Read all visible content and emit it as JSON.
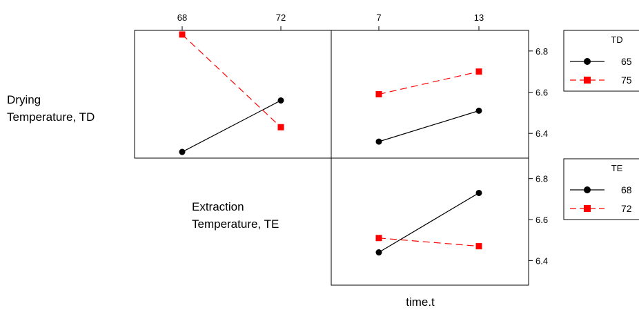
{
  "chart_data": {
    "type": "line",
    "subtype": "interaction-plot-matrix",
    "xlabel": "time.t",
    "factors": {
      "TD": {
        "label_lines": [
          "Drying",
          "Temperature, TD"
        ],
        "levels": [
          "65",
          "75"
        ]
      },
      "TE": {
        "label_lines": [
          "Extraction",
          "Temperature, TE"
        ],
        "levels": [
          "68",
          "72"
        ]
      },
      "time": {
        "levels": [
          "7",
          "13"
        ]
      }
    },
    "top_ticks": {
      "TE": [
        "68",
        "72"
      ],
      "time": [
        "7",
        "13"
      ]
    },
    "ylim": [
      6.28,
      6.9
    ],
    "yticks": [
      "6.4",
      "6.6",
      "6.8"
    ],
    "colors": {
      "level1": "#000000",
      "level2": "#ff0000"
    },
    "panels": [
      {
        "id": "TD-by-TE",
        "x_factor": "TE",
        "trace_factor": "TD",
        "categories": [
          "68",
          "72"
        ],
        "series": [
          {
            "name": "65",
            "values": [
              6.31,
              6.56
            ],
            "color": "#000000",
            "marker": "circle",
            "dash": "solid"
          },
          {
            "name": "75",
            "values": [
              6.88,
              6.43
            ],
            "color": "#ff0000",
            "marker": "square",
            "dash": "dashed"
          }
        ]
      },
      {
        "id": "TD-by-time",
        "x_factor": "time",
        "trace_factor": "TD",
        "categories": [
          "7",
          "13"
        ],
        "series": [
          {
            "name": "65",
            "values": [
              6.36,
              6.51
            ],
            "color": "#000000",
            "marker": "circle",
            "dash": "solid"
          },
          {
            "name": "75",
            "values": [
              6.59,
              6.7
            ],
            "color": "#ff0000",
            "marker": "square",
            "dash": "dashed"
          }
        ]
      },
      {
        "id": "TE-by-time",
        "x_factor": "time",
        "trace_factor": "TE",
        "categories": [
          "7",
          "13"
        ],
        "series": [
          {
            "name": "68",
            "values": [
              6.44,
              6.73
            ],
            "color": "#000000",
            "marker": "circle",
            "dash": "solid"
          },
          {
            "name": "72",
            "values": [
              6.51,
              6.47
            ],
            "color": "#ff0000",
            "marker": "square",
            "dash": "dashed"
          }
        ]
      }
    ],
    "legends": [
      {
        "title": "TD",
        "entries": [
          {
            "label": "65",
            "color": "#000000",
            "marker": "circle",
            "dash": "solid"
          },
          {
            "label": "75",
            "color": "#ff0000",
            "marker": "square",
            "dash": "dashed"
          }
        ]
      },
      {
        "title": "TE",
        "entries": [
          {
            "label": "68",
            "color": "#000000",
            "marker": "circle",
            "dash": "solid"
          },
          {
            "label": "72",
            "color": "#ff0000",
            "marker": "square",
            "dash": "dashed"
          }
        ]
      }
    ],
    "legend_position": "right",
    "grid": false
  }
}
